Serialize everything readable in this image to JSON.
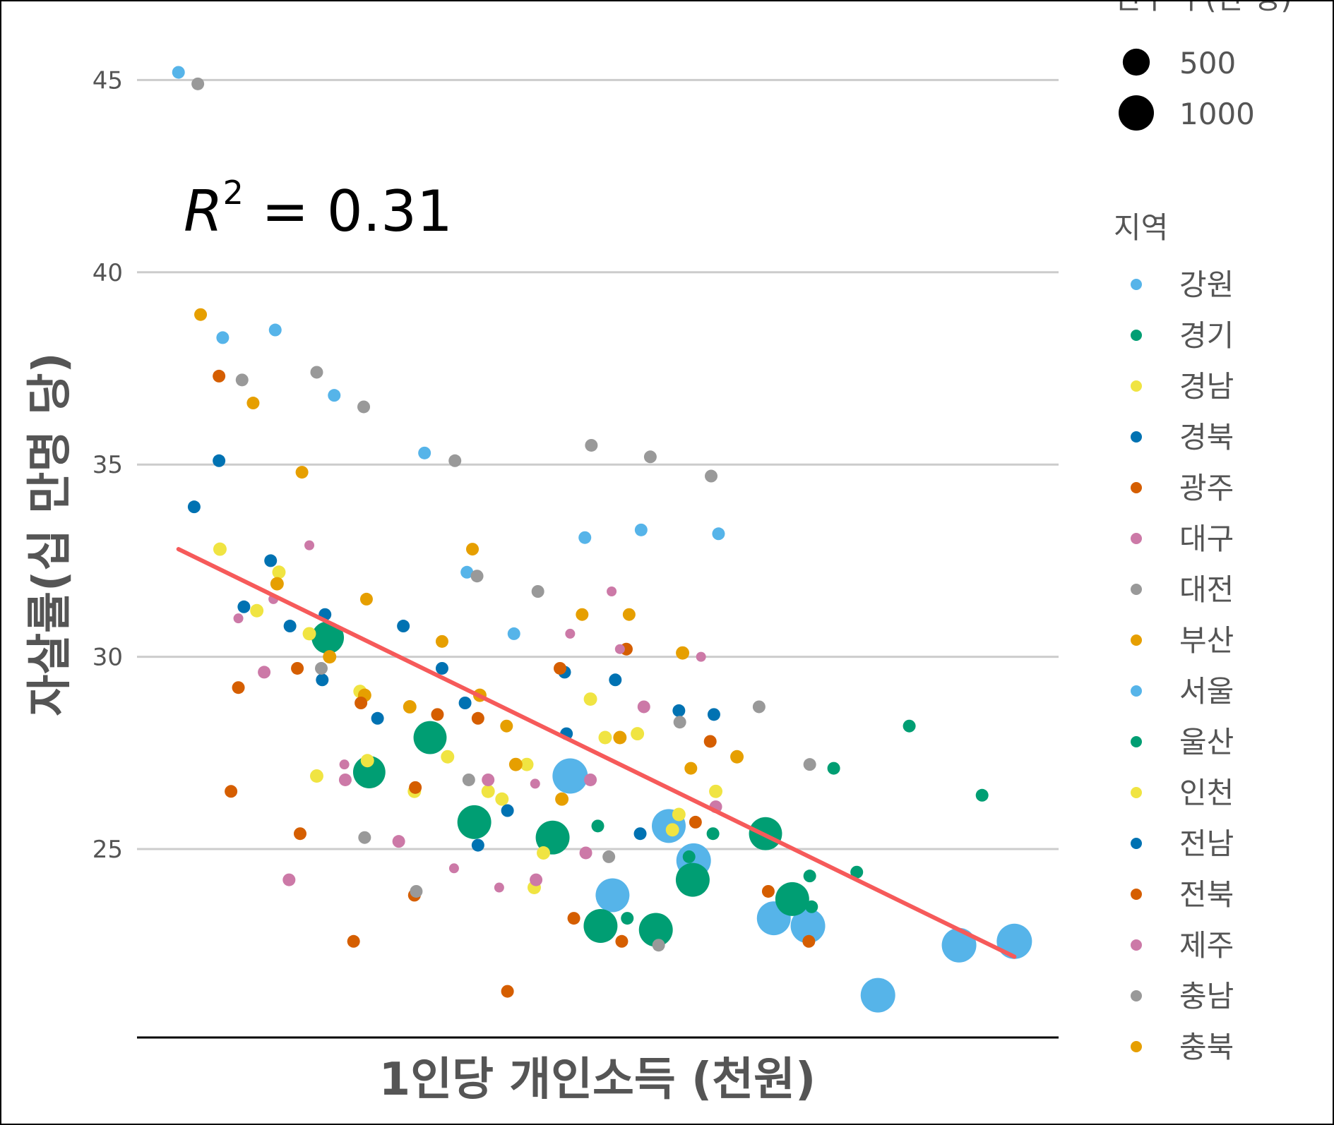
{
  "chart_data": {
    "type": "scatter",
    "xlabel": "1인당 개인소득 (천원)",
    "ylabel": "자살률(십 만명 당)",
    "ylim": [
      20.1,
      46.2
    ],
    "yticks": [
      25,
      30,
      35,
      40,
      45
    ],
    "xlim": [
      0,
      100
    ],
    "x_axis_note": "x tick labels not shown; x values on arbitrary 0-100 relative scale",
    "grid": true,
    "annotation": {
      "label": "R",
      "superscript": "2",
      "text": " = 0.31"
    },
    "trend_line": {
      "x": [
        4.5,
        95.2
      ],
      "y": [
        32.8,
        22.2
      ],
      "color": "#F65A5A"
    },
    "size_legend": {
      "title": "인구 수(만 명)",
      "values": [
        500,
        1000
      ]
    },
    "color_legend": {
      "title": "지역",
      "entries": [
        {
          "name": "강원",
          "color": "#56B4E9"
        },
        {
          "name": "경기",
          "color": "#009E73"
        },
        {
          "name": "경남",
          "color": "#F0E442"
        },
        {
          "name": "경북",
          "color": "#0072B2"
        },
        {
          "name": "광주",
          "color": "#D55E00"
        },
        {
          "name": "대구",
          "color": "#CC79A7"
        },
        {
          "name": "대전",
          "color": "#999999"
        },
        {
          "name": "부산",
          "color": "#E69F00"
        },
        {
          "name": "서울",
          "color": "#56B4E9"
        },
        {
          "name": "울산",
          "color": "#009E73"
        },
        {
          "name": "인천",
          "color": "#F0E442"
        },
        {
          "name": "전남",
          "color": "#0072B2"
        },
        {
          "name": "전북",
          "color": "#D55E00"
        },
        {
          "name": "제주",
          "color": "#CC79A7"
        },
        {
          "name": "충남",
          "color": "#999999"
        },
        {
          "name": "충북",
          "color": "#E69F00"
        }
      ]
    },
    "points": [
      {
        "r": "강원",
        "x": 4.5,
        "y": 45.2,
        "s": 40
      },
      {
        "r": "강원",
        "x": 9.3,
        "y": 38.3,
        "s": 40
      },
      {
        "r": "강원",
        "x": 15,
        "y": 38.5,
        "s": 40
      },
      {
        "r": "강원",
        "x": 21.4,
        "y": 36.8,
        "s": 40
      },
      {
        "r": "강원",
        "x": 31.2,
        "y": 35.3,
        "s": 40
      },
      {
        "r": "강원",
        "x": 35.8,
        "y": 32.2,
        "s": 40
      },
      {
        "r": "강원",
        "x": 40.9,
        "y": 30.6,
        "s": 40
      },
      {
        "r": "강원",
        "x": 48.6,
        "y": 33.1,
        "s": 40
      },
      {
        "r": "강원",
        "x": 54.7,
        "y": 33.3,
        "s": 40
      },
      {
        "r": "강원",
        "x": 63.1,
        "y": 33.2,
        "s": 40
      },
      {
        "r": "서울",
        "x": 47,
        "y": 26.9,
        "s": 1000
      },
      {
        "r": "서울",
        "x": 51.6,
        "y": 23.8,
        "s": 900
      },
      {
        "r": "서울",
        "x": 57.7,
        "y": 25.6,
        "s": 900
      },
      {
        "r": "서울",
        "x": 60.4,
        "y": 24.7,
        "s": 950
      },
      {
        "r": "서울",
        "x": 69.1,
        "y": 23.2,
        "s": 900
      },
      {
        "r": "서울",
        "x": 72.8,
        "y": 23,
        "s": 950
      },
      {
        "r": "서울",
        "x": 80.4,
        "y": 21.2,
        "s": 950
      },
      {
        "r": "서울",
        "x": 89.2,
        "y": 22.5,
        "s": 950
      },
      {
        "r": "서울",
        "x": 95.2,
        "y": 22.6,
        "s": 1000
      },
      {
        "r": "경기",
        "x": 20.7,
        "y": 30.5,
        "s": 800
      },
      {
        "r": "경기",
        "x": 25.2,
        "y": 27,
        "s": 800
      },
      {
        "r": "경기",
        "x": 31.8,
        "y": 27.9,
        "s": 850
      },
      {
        "r": "경기",
        "x": 36.6,
        "y": 25.7,
        "s": 900
      },
      {
        "r": "경기",
        "x": 45.1,
        "y": 25.3,
        "s": 900
      },
      {
        "r": "경기",
        "x": 50,
        "y": 25.6,
        "s": 40
      },
      {
        "r": "경기",
        "x": 50.3,
        "y": 23,
        "s": 900
      },
      {
        "r": "경기",
        "x": 53.2,
        "y": 23.2,
        "s": 40
      },
      {
        "r": "경기",
        "x": 56.3,
        "y": 22.9,
        "s": 900
      },
      {
        "r": "경기",
        "x": 60.3,
        "y": 24.2,
        "s": 900
      },
      {
        "r": "경기",
        "x": 68.2,
        "y": 25.4,
        "s": 850
      },
      {
        "r": "경기",
        "x": 71.1,
        "y": 23.7,
        "s": 900
      },
      {
        "r": "경기",
        "x": 73.2,
        "y": 23.5,
        "s": 40
      },
      {
        "r": "경기",
        "x": 59.9,
        "y": 24.8,
        "s": 40
      },
      {
        "r": "울산",
        "x": 62.5,
        "y": 25.4,
        "s": 40
      },
      {
        "r": "울산",
        "x": 73,
        "y": 24.3,
        "s": 40
      },
      {
        "r": "울산",
        "x": 75.6,
        "y": 27.1,
        "s": 40
      },
      {
        "r": "울산",
        "x": 78.1,
        "y": 24.4,
        "s": 40
      },
      {
        "r": "울산",
        "x": 83.8,
        "y": 28.2,
        "s": 40
      },
      {
        "r": "울산",
        "x": 91.7,
        "y": 26.4,
        "s": 40
      },
      {
        "r": "경남",
        "x": 9,
        "y": 32.8,
        "s": 50
      },
      {
        "r": "경남",
        "x": 15.4,
        "y": 32.2,
        "s": 50
      },
      {
        "r": "경남",
        "x": 13,
        "y": 31.2,
        "s": 50
      },
      {
        "r": "경남",
        "x": 18.7,
        "y": 30.6,
        "s": 50
      },
      {
        "r": "경남",
        "x": 19.5,
        "y": 26.9,
        "s": 50
      },
      {
        "r": "경남",
        "x": 24.2,
        "y": 29.1,
        "s": 50
      },
      {
        "r": "경남",
        "x": 25,
        "y": 27.3,
        "s": 50
      },
      {
        "r": "경남",
        "x": 30.1,
        "y": 26.5,
        "s": 50
      },
      {
        "r": "경남",
        "x": 33.7,
        "y": 27.4,
        "s": 50
      },
      {
        "r": "경남",
        "x": 38.1,
        "y": 26.5,
        "s": 50
      },
      {
        "r": "경남",
        "x": 39.6,
        "y": 26.3,
        "s": 50
      },
      {
        "r": "경남",
        "x": 42.3,
        "y": 27.2,
        "s": 50
      },
      {
        "r": "경남",
        "x": 44.1,
        "y": 24.9,
        "s": 50
      },
      {
        "r": "경남",
        "x": 43.1,
        "y": 24,
        "s": 50
      },
      {
        "r": "경남",
        "x": 49.2,
        "y": 28.9,
        "s": 50
      },
      {
        "r": "경남",
        "x": 50.8,
        "y": 27.9,
        "s": 50
      },
      {
        "r": "경남",
        "x": 54.3,
        "y": 28,
        "s": 50
      },
      {
        "r": "경남",
        "x": 58.1,
        "y": 25.5,
        "s": 50
      },
      {
        "r": "경남",
        "x": 58.8,
        "y": 25.9,
        "s": 50
      },
      {
        "r": "경남",
        "x": 62.8,
        "y": 26.5,
        "s": 50
      },
      {
        "r": "경북",
        "x": 6.2,
        "y": 33.9,
        "s": 40
      },
      {
        "r": "경북",
        "x": 8.9,
        "y": 35.1,
        "s": 40
      },
      {
        "r": "경북",
        "x": 11.6,
        "y": 31.3,
        "s": 40
      },
      {
        "r": "경북",
        "x": 14.5,
        "y": 32.5,
        "s": 40
      },
      {
        "r": "경북",
        "x": 16.6,
        "y": 30.8,
        "s": 40
      },
      {
        "r": "경북",
        "x": 20.4,
        "y": 31.1,
        "s": 40
      },
      {
        "r": "경북",
        "x": 20.1,
        "y": 29.4,
        "s": 40
      },
      {
        "r": "경북",
        "x": 26.1,
        "y": 28.4,
        "s": 40
      },
      {
        "r": "경북",
        "x": 28.9,
        "y": 30.8,
        "s": 40
      },
      {
        "r": "경북",
        "x": 33.1,
        "y": 29.7,
        "s": 40
      },
      {
        "r": "경북",
        "x": 35.6,
        "y": 28.8,
        "s": 40
      },
      {
        "r": "경북",
        "x": 37,
        "y": 25.1,
        "s": 40
      },
      {
        "r": "경북",
        "x": 40.2,
        "y": 26,
        "s": 40
      },
      {
        "r": "경북",
        "x": 46.4,
        "y": 29.6,
        "s": 40
      },
      {
        "r": "경북",
        "x": 46.6,
        "y": 28,
        "s": 40
      },
      {
        "r": "경북",
        "x": 51.9,
        "y": 29.4,
        "s": 40
      },
      {
        "r": "경북",
        "x": 54.6,
        "y": 25.4,
        "s": 40
      },
      {
        "r": "경북",
        "x": 58.8,
        "y": 28.6,
        "s": 40
      },
      {
        "r": "경북",
        "x": 62.6,
        "y": 28.5,
        "s": 40
      },
      {
        "r": "광주",
        "x": 8.9,
        "y": 37.3,
        "s": 40
      },
      {
        "r": "광주",
        "x": 11,
        "y": 29.2,
        "s": 40
      },
      {
        "r": "광주",
        "x": 10.2,
        "y": 26.5,
        "s": 40
      },
      {
        "r": "광주",
        "x": 17.4,
        "y": 29.7,
        "s": 40
      },
      {
        "r": "광주",
        "x": 17.7,
        "y": 25.4,
        "s": 40
      },
      {
        "r": "광주",
        "x": 24.3,
        "y": 28.8,
        "s": 40
      },
      {
        "r": "광주",
        "x": 23.5,
        "y": 22.6,
        "s": 40
      },
      {
        "r": "광주",
        "x": 30.2,
        "y": 26.6,
        "s": 40
      },
      {
        "r": "광주",
        "x": 30.1,
        "y": 23.8,
        "s": 40
      },
      {
        "r": "광주",
        "x": 32.6,
        "y": 28.5,
        "s": 40
      },
      {
        "r": "광주",
        "x": 37,
        "y": 28.4,
        "s": 40
      },
      {
        "r": "광주",
        "x": 40.2,
        "y": 21.3,
        "s": 40
      },
      {
        "r": "광주",
        "x": 45.9,
        "y": 29.7,
        "s": 40
      },
      {
        "r": "광주",
        "x": 47.4,
        "y": 23.2,
        "s": 40
      },
      {
        "r": "광주",
        "x": 52.6,
        "y": 22.6,
        "s": 40
      },
      {
        "r": "광주",
        "x": 53.1,
        "y": 30.2,
        "s": 40
      },
      {
        "r": "광주",
        "x": 60.6,
        "y": 25.7,
        "s": 40
      },
      {
        "r": "광주",
        "x": 62.2,
        "y": 27.8,
        "s": 40
      },
      {
        "r": "광주",
        "x": 68.5,
        "y": 23.9,
        "s": 40
      },
      {
        "r": "광주",
        "x": 72.9,
        "y": 22.6,
        "s": 40
      },
      {
        "r": "대구",
        "x": 13.8,
        "y": 29.6,
        "s": 40
      },
      {
        "r": "대구",
        "x": 11,
        "y": 31,
        "s": 10
      },
      {
        "r": "대구",
        "x": 14.8,
        "y": 31.5,
        "s": 10
      },
      {
        "r": "대구",
        "x": 18.7,
        "y": 32.9,
        "s": 10
      },
      {
        "r": "대구",
        "x": 16.5,
        "y": 24.2,
        "s": 40
      },
      {
        "r": "대구",
        "x": 22.5,
        "y": 27.2,
        "s": 10
      },
      {
        "r": "대구",
        "x": 22.6,
        "y": 26.8,
        "s": 40
      },
      {
        "r": "대구",
        "x": 28.4,
        "y": 25.2,
        "s": 40
      },
      {
        "r": "대구",
        "x": 34.4,
        "y": 24.5,
        "s": 10
      },
      {
        "r": "대구",
        "x": 38.1,
        "y": 26.8,
        "s": 40
      },
      {
        "r": "대구",
        "x": 39.3,
        "y": 24,
        "s": 10
      },
      {
        "r": "대구",
        "x": 43.2,
        "y": 26.7,
        "s": 10
      },
      {
        "r": "대구",
        "x": 43.3,
        "y": 24.2,
        "s": 40
      },
      {
        "r": "대구",
        "x": 47,
        "y": 30.6,
        "s": 10
      },
      {
        "r": "대구",
        "x": 48.7,
        "y": 24.9,
        "s": 40
      },
      {
        "r": "대구",
        "x": 49.2,
        "y": 26.8,
        "s": 40
      },
      {
        "r": "대구",
        "x": 51.5,
        "y": 31.7,
        "s": 10
      },
      {
        "r": "대구",
        "x": 55,
        "y": 28.7,
        "s": 40
      },
      {
        "r": "대구",
        "x": 61.2,
        "y": 30,
        "s": 10
      },
      {
        "r": "대구",
        "x": 62.8,
        "y": 26.1,
        "s": 40
      },
      {
        "r": "대전",
        "x": 6.6,
        "y": 44.9,
        "s": 40
      },
      {
        "r": "대전",
        "x": 11.4,
        "y": 37.2,
        "s": 40
      },
      {
        "r": "대전",
        "x": 19.5,
        "y": 37.4,
        "s": 40
      },
      {
        "r": "대전",
        "x": 24.6,
        "y": 36.5,
        "s": 40
      },
      {
        "r": "대전",
        "x": 34.5,
        "y": 35.1,
        "s": 40
      },
      {
        "r": "대전",
        "x": 36.9,
        "y": 32.1,
        "s": 40
      },
      {
        "r": "대전",
        "x": 43.5,
        "y": 31.7,
        "s": 40
      },
      {
        "r": "대전",
        "x": 49.3,
        "y": 35.5,
        "s": 40
      },
      {
        "r": "대전",
        "x": 55.7,
        "y": 35.2,
        "s": 40
      },
      {
        "r": "대전",
        "x": 62.3,
        "y": 34.7,
        "s": 40
      },
      {
        "r": "대전",
        "x": 20,
        "y": 29.7,
        "s": 40
      },
      {
        "r": "대전",
        "x": 24.7,
        "y": 25.3,
        "s": 40
      },
      {
        "r": "대전",
        "x": 30.3,
        "y": 23.9,
        "s": 40
      },
      {
        "r": "대전",
        "x": 36,
        "y": 26.8,
        "s": 40
      },
      {
        "r": "대전",
        "x": 51.2,
        "y": 24.8,
        "s": 40
      },
      {
        "r": "대전",
        "x": 56.6,
        "y": 22.5,
        "s": 40
      },
      {
        "r": "대전",
        "x": 58.9,
        "y": 28.3,
        "s": 40
      },
      {
        "r": "대전",
        "x": 67.5,
        "y": 28.7,
        "s": 40
      },
      {
        "r": "대전",
        "x": 73,
        "y": 27.2,
        "s": 40
      },
      {
        "r": "부산",
        "x": 6.9,
        "y": 38.9,
        "s": 40
      },
      {
        "r": "부산",
        "x": 12.6,
        "y": 36.6,
        "s": 40
      },
      {
        "r": "부산",
        "x": 17.9,
        "y": 34.8,
        "s": 40
      },
      {
        "r": "부산",
        "x": 15.2,
        "y": 31.9,
        "s": 50
      },
      {
        "r": "부산",
        "x": 20.9,
        "y": 30,
        "s": 50
      },
      {
        "r": "부산",
        "x": 24.9,
        "y": 31.5,
        "s": 40
      },
      {
        "r": "부산",
        "x": 24.7,
        "y": 29,
        "s": 50
      },
      {
        "r": "부산",
        "x": 29.6,
        "y": 28.7,
        "s": 50
      },
      {
        "r": "부산",
        "x": 33.1,
        "y": 30.4,
        "s": 40
      },
      {
        "r": "부산",
        "x": 36.4,
        "y": 32.8,
        "s": 40
      },
      {
        "r": "부산",
        "x": 37.2,
        "y": 29,
        "s": 50
      },
      {
        "r": "부산",
        "x": 40.1,
        "y": 28.2,
        "s": 40
      },
      {
        "r": "부산",
        "x": 41.1,
        "y": 27.2,
        "s": 50
      },
      {
        "r": "부산",
        "x": 46.1,
        "y": 26.3,
        "s": 50
      },
      {
        "r": "부산",
        "x": 48.3,
        "y": 31.1,
        "s": 40
      },
      {
        "r": "부산",
        "x": 52.4,
        "y": 27.9,
        "s": 50
      },
      {
        "r": "부산",
        "x": 53.4,
        "y": 31.1,
        "s": 40
      },
      {
        "r": "부산",
        "x": 59.2,
        "y": 30.1,
        "s": 50
      },
      {
        "r": "부산",
        "x": 60.1,
        "y": 27.1,
        "s": 40
      },
      {
        "r": "부산",
        "x": 65.1,
        "y": 27.4,
        "s": 50
      },
      {
        "r": "제주",
        "x": 52.4,
        "y": 30.2,
        "s": 10
      }
    ]
  }
}
